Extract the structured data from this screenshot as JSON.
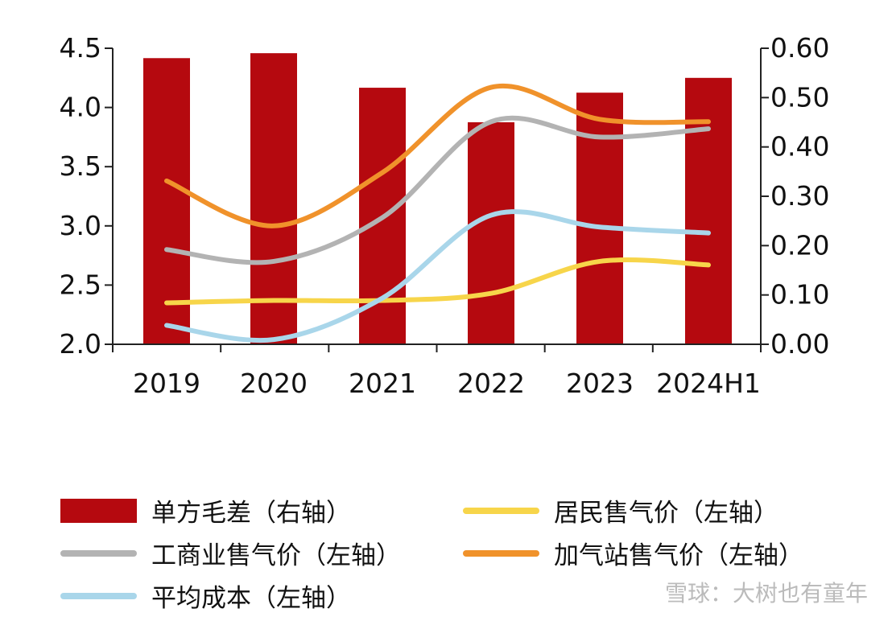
{
  "chart_data": {
    "type": "bar+line",
    "title": "",
    "categories": [
      "2019",
      "2020",
      "2021",
      "2022",
      "2023",
      "2024H1"
    ],
    "left_axis": {
      "ylim": [
        2.0,
        4.5
      ],
      "ticks": [
        "2.0",
        "2.5",
        "3.0",
        "3.5",
        "4.0",
        "4.5"
      ]
    },
    "right_axis": {
      "ylim": [
        0.0,
        0.6
      ],
      "ticks": [
        "0.00",
        "0.10",
        "0.20",
        "0.30",
        "0.40",
        "0.50",
        "0.60"
      ]
    },
    "bars": {
      "name": "单方毛差（右轴）",
      "axis": "right",
      "color": "#b5090f",
      "values": [
        0.58,
        0.59,
        0.52,
        0.45,
        0.51,
        0.54
      ]
    },
    "series": [
      {
        "name": "工商业售气价（左轴）",
        "axis": "left",
        "color": "#b3b3b3",
        "values": [
          2.8,
          2.7,
          3.07,
          3.88,
          3.75,
          3.82
        ]
      },
      {
        "name": "加气站售气价（左轴）",
        "axis": "left",
        "color": "#f0922b",
        "values": [
          3.38,
          3.0,
          3.45,
          4.17,
          3.9,
          3.88
        ]
      },
      {
        "name": "居民售气价（左轴）",
        "axis": "left",
        "color": "#f7d54a",
        "values": [
          2.35,
          2.37,
          2.37,
          2.43,
          2.7,
          2.67
        ]
      },
      {
        "name": "平均成本（左轴）",
        "axis": "left",
        "color": "#a9d6ea",
        "values": [
          2.16,
          2.04,
          2.39,
          3.09,
          2.99,
          2.94
        ]
      }
    ],
    "legend_position": "bottom"
  },
  "watermark": "雪球：大树也有童年"
}
